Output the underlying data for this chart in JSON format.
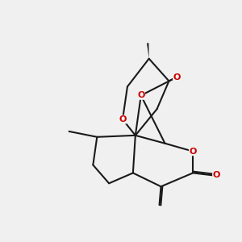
{
  "background_color": "#f0f0f0",
  "bond_color": "#1a1a1a",
  "oxygen_color": "#cc0000",
  "oxygen_label": "O",
  "carbonyl_oxygen": "O",
  "figsize": [
    3.0,
    3.0
  ],
  "dpi": 100,
  "title": ""
}
